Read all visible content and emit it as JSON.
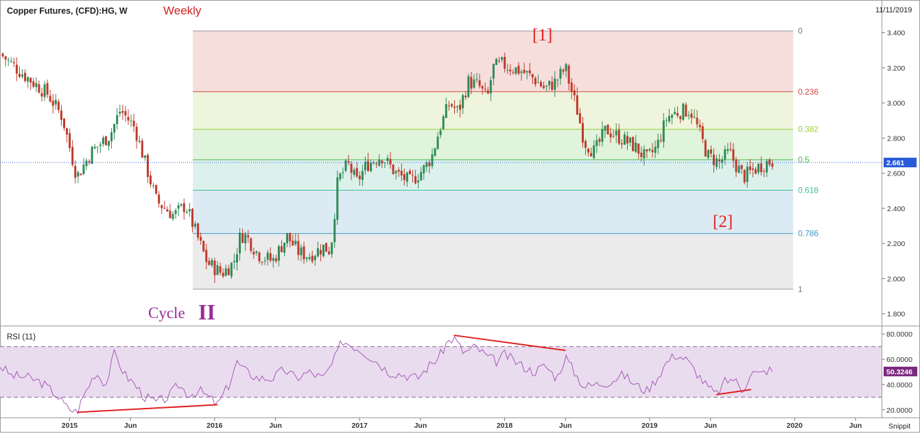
{
  "header": {
    "title": "Copper Futures, (CFD):HG, W",
    "timeframe": "Weekly",
    "date": "11/11/2019",
    "cycle_word": "Cycle",
    "cycle_numeral": "II",
    "wave1": "[1]",
    "wave2": "[2]",
    "rsi_label": "RSI (11)",
    "footer": "Snippit"
  },
  "colors": {
    "up_candle": "#2e8b57",
    "down_candle": "#c0392b",
    "rsi_line": "#a259b5",
    "rsi_band": "#eadcef",
    "divergence": "#e02020",
    "price_tag": "#2a5bd7",
    "rsi_tag": "#7b2a7f",
    "wave_label": "#e02020",
    "cycle_label": "#9b2a9b"
  },
  "chart_data": [
    {
      "type": "candlestick",
      "title": "Copper Futures, (CFD):HG, W",
      "y_axis": {
        "ticks": [
          "3.400",
          "3.200",
          "3.000",
          "2.800",
          "2.600",
          "2.400",
          "2.200",
          "2.000",
          "1.800"
        ],
        "ylim": [
          1.76,
          3.5
        ]
      },
      "x_axis": {
        "ticks": [
          {
            "label": "2015",
            "t": 2015.0
          },
          {
            "label": "Jun",
            "t": 2015.42
          },
          {
            "label": "2016",
            "t": 2016.0
          },
          {
            "label": "Jun",
            "t": 2016.42
          },
          {
            "label": "2017",
            "t": 2017.0
          },
          {
            "label": "Jun",
            "t": 2017.42
          },
          {
            "label": "2018",
            "t": 2018.0
          },
          {
            "label": "Jun",
            "t": 2018.42
          },
          {
            "label": "2019",
            "t": 2019.0
          },
          {
            "label": "Jun",
            "t": 2019.42
          },
          {
            "label": "2020",
            "t": 2020.0
          },
          {
            "label": "Jun",
            "t": 2020.42
          }
        ],
        "xlim": [
          2014.52,
          2020.6
        ]
      },
      "last_price": "2.661",
      "fibonacci": {
        "start": 2015.85,
        "end": 2019.99,
        "levels": [
          {
            "ratio": "0",
            "price": 3.41
          },
          {
            "ratio": "0.236",
            "price": 3.064
          },
          {
            "ratio": "0.382",
            "price": 2.85
          },
          {
            "ratio": "0.5",
            "price": 2.677
          },
          {
            "ratio": "0.618",
            "price": 2.503
          },
          {
            "ratio": "0.786",
            "price": 2.257
          },
          {
            "ratio": "1",
            "price": 1.94
          }
        ]
      },
      "anchors": [
        [
          2014.52,
          3.28
        ],
        [
          2014.7,
          3.15
        ],
        [
          2014.85,
          3.05
        ],
        [
          2014.95,
          2.92
        ],
        [
          2015.05,
          2.58
        ],
        [
          2015.15,
          2.72
        ],
        [
          2015.28,
          2.82
        ],
        [
          2015.35,
          2.96
        ],
        [
          2015.45,
          2.86
        ],
        [
          2015.52,
          2.66
        ],
        [
          2015.6,
          2.44
        ],
        [
          2015.72,
          2.36
        ],
        [
          2015.8,
          2.42
        ],
        [
          2015.88,
          2.24
        ],
        [
          2015.95,
          2.09
        ],
        [
          2016.05,
          2.03
        ],
        [
          2016.13,
          2.09
        ],
        [
          2016.18,
          2.25
        ],
        [
          2016.22,
          2.24
        ],
        [
          2016.3,
          2.14
        ],
        [
          2016.4,
          2.1
        ],
        [
          2016.5,
          2.24
        ],
        [
          2016.58,
          2.15
        ],
        [
          2016.65,
          2.13
        ],
        [
          2016.75,
          2.18
        ],
        [
          2016.8,
          2.16
        ],
        [
          2016.85,
          2.56
        ],
        [
          2016.92,
          2.65
        ],
        [
          2016.98,
          2.55
        ],
        [
          2017.05,
          2.65
        ],
        [
          2017.15,
          2.7
        ],
        [
          2017.25,
          2.6
        ],
        [
          2017.35,
          2.55
        ],
        [
          2017.45,
          2.63
        ],
        [
          2017.5,
          2.7
        ],
        [
          2017.55,
          2.85
        ],
        [
          2017.62,
          3.0
        ],
        [
          2017.68,
          2.95
        ],
        [
          2017.75,
          3.12
        ],
        [
          2017.82,
          3.1
        ],
        [
          2017.88,
          3.02
        ],
        [
          2017.92,
          3.2
        ],
        [
          2017.98,
          3.22
        ],
        [
          2018.05,
          3.2
        ],
        [
          2018.12,
          3.18
        ],
        [
          2018.2,
          3.14
        ],
        [
          2018.28,
          3.08
        ],
        [
          2018.35,
          3.12
        ],
        [
          2018.42,
          3.2
        ],
        [
          2018.45,
          3.1
        ],
        [
          2018.5,
          2.96
        ],
        [
          2018.55,
          2.78
        ],
        [
          2018.62,
          2.72
        ],
        [
          2018.7,
          2.85
        ],
        [
          2018.8,
          2.8
        ],
        [
          2018.9,
          2.75
        ],
        [
          2018.98,
          2.68
        ],
        [
          2019.05,
          2.75
        ],
        [
          2019.12,
          2.92
        ],
        [
          2019.2,
          2.95
        ],
        [
          2019.28,
          2.96
        ],
        [
          2019.33,
          2.86
        ],
        [
          2019.4,
          2.7
        ],
        [
          2019.48,
          2.66
        ],
        [
          2019.55,
          2.72
        ],
        [
          2019.6,
          2.64
        ],
        [
          2019.65,
          2.58
        ],
        [
          2019.72,
          2.62
        ],
        [
          2019.8,
          2.66
        ],
        [
          2019.86,
          2.67
        ]
      ]
    },
    {
      "type": "line",
      "title": "RSI (11)",
      "y_axis": {
        "ticks": [
          "80.0000",
          "60.0000",
          "40.0000",
          "20.0000"
        ],
        "ylim": [
          15,
          85
        ]
      },
      "bands": [
        30,
        70
      ],
      "last_value": "50.3246",
      "anchors": [
        [
          2014.52,
          55
        ],
        [
          2014.6,
          47
        ],
        [
          2014.7,
          46
        ],
        [
          2014.8,
          42
        ],
        [
          2014.9,
          33
        ],
        [
          2014.98,
          22
        ],
        [
          2015.05,
          18
        ],
        [
          2015.1,
          32
        ],
        [
          2015.18,
          50
        ],
        [
          2015.25,
          40
        ],
        [
          2015.31,
          65
        ],
        [
          2015.38,
          48
        ],
        [
          2015.45,
          40
        ],
        [
          2015.52,
          30
        ],
        [
          2015.6,
          26
        ],
        [
          2015.68,
          30
        ],
        [
          2015.75,
          40
        ],
        [
          2015.82,
          32
        ],
        [
          2015.9,
          35
        ],
        [
          2015.98,
          28
        ],
        [
          2016.02,
          24
        ],
        [
          2016.1,
          40
        ],
        [
          2016.15,
          58
        ],
        [
          2016.22,
          50
        ],
        [
          2016.3,
          45
        ],
        [
          2016.4,
          45
        ],
        [
          2016.48,
          52
        ],
        [
          2016.56,
          45
        ],
        [
          2016.65,
          50
        ],
        [
          2016.75,
          45
        ],
        [
          2016.82,
          58
        ],
        [
          2016.88,
          75
        ],
        [
          2016.93,
          72
        ],
        [
          2017.0,
          68
        ],
        [
          2017.1,
          60
        ],
        [
          2017.2,
          50
        ],
        [
          2017.3,
          48
        ],
        [
          2017.4,
          45
        ],
        [
          2017.48,
          55
        ],
        [
          2017.55,
          62
        ],
        [
          2017.6,
          73
        ],
        [
          2017.65,
          77
        ],
        [
          2017.72,
          65
        ],
        [
          2017.8,
          70
        ],
        [
          2017.88,
          62
        ],
        [
          2017.95,
          58
        ],
        [
          2018.0,
          64
        ],
        [
          2018.05,
          60
        ],
        [
          2018.12,
          55
        ],
        [
          2018.2,
          50
        ],
        [
          2018.28,
          55
        ],
        [
          2018.36,
          45
        ],
        [
          2018.42,
          62
        ],
        [
          2018.48,
          50
        ],
        [
          2018.55,
          38
        ],
        [
          2018.62,
          40
        ],
        [
          2018.72,
          42
        ],
        [
          2018.82,
          48
        ],
        [
          2018.9,
          40
        ],
        [
          2018.98,
          35
        ],
        [
          2019.05,
          45
        ],
        [
          2019.12,
          58
        ],
        [
          2019.18,
          64
        ],
        [
          2019.25,
          60
        ],
        [
          2019.32,
          50
        ],
        [
          2019.4,
          38
        ],
        [
          2019.46,
          32
        ],
        [
          2019.52,
          42
        ],
        [
          2019.58,
          45
        ],
        [
          2019.64,
          35
        ],
        [
          2019.7,
          50
        ],
        [
          2019.76,
          48
        ],
        [
          2019.82,
          52
        ],
        [
          2019.86,
          50
        ]
      ],
      "divergence_lines": [
        {
          "from": [
            2015.05,
            18
          ],
          "to": [
            2016.02,
            24
          ]
        },
        {
          "from": [
            2017.65,
            79
          ],
          "to": [
            2018.42,
            67
          ]
        },
        {
          "from": [
            2019.46,
            32
          ],
          "to": [
            2019.7,
            36
          ]
        }
      ]
    }
  ]
}
